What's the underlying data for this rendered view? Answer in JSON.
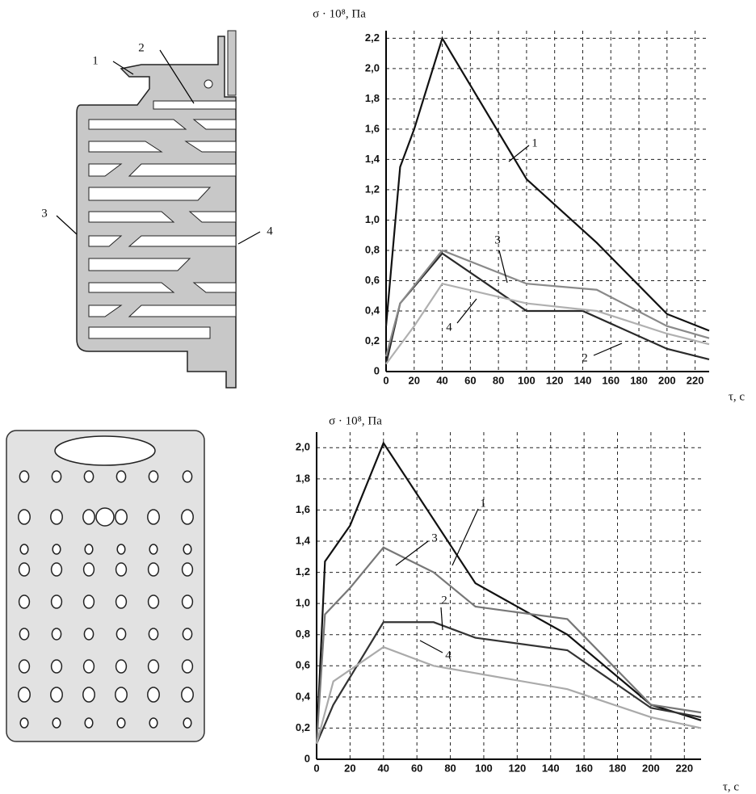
{
  "diagram": {
    "labels": [
      "1",
      "2",
      "3",
      "4"
    ]
  },
  "chart_data": [
    {
      "type": "line",
      "y_label": "σ · 10⁸, Па",
      "x_label": "τ, с",
      "xlim": [
        0,
        230
      ],
      "ylim": [
        0,
        2.25
      ],
      "xticks": [
        0,
        20,
        40,
        60,
        80,
        100,
        120,
        140,
        160,
        180,
        200,
        220
      ],
      "yticks": [
        0,
        {
          "value": 0.2,
          "label": "0,2"
        },
        {
          "value": 0.4,
          "label": "0,4"
        },
        {
          "value": 0.6,
          "label": "0,6"
        },
        {
          "value": 0.8,
          "label": "0,8"
        },
        {
          "value": 1.0,
          "label": "1,0"
        },
        {
          "value": 1.2,
          "label": "1,2"
        },
        {
          "value": 1.4,
          "label": "1,4"
        },
        {
          "value": 1.6,
          "label": "1,6"
        },
        {
          "value": 1.8,
          "label": "1,8"
        },
        {
          "value": 2.0,
          "label": "2,0"
        },
        {
          "value": 2.2,
          "label": "2,2"
        }
      ],
      "grid": true,
      "series": [
        {
          "name": "1",
          "color": "#111111",
          "x": [
            0,
            10,
            20,
            40,
            100,
            150,
            200,
            230
          ],
          "values": [
            0.3,
            1.35,
            1.6,
            2.2,
            1.27,
            0.85,
            0.38,
            0.27
          ]
        },
        {
          "name": "2",
          "color": "#2a2a2a",
          "x": [
            0,
            10,
            40,
            100,
            140,
            200,
            230
          ],
          "values": [
            0.05,
            0.45,
            0.78,
            0.4,
            0.4,
            0.15,
            0.08
          ]
        },
        {
          "name": "3",
          "color": "#8a8a8a",
          "x": [
            0,
            10,
            40,
            100,
            150,
            200,
            230
          ],
          "values": [
            0.1,
            0.45,
            0.8,
            0.58,
            0.54,
            0.3,
            0.22
          ]
        },
        {
          "name": "4",
          "color": "#b0b0b0",
          "x": [
            0,
            20,
            40,
            100,
            150,
            200,
            230
          ],
          "values": [
            0.05,
            0.3,
            0.58,
            0.45,
            0.4,
            0.25,
            0.18
          ]
        }
      ]
    },
    {
      "type": "line",
      "y_label": "σ · 10⁸, Па",
      "x_label": "τ, с",
      "xlim": [
        0,
        230
      ],
      "ylim": [
        0,
        2.1
      ],
      "xticks": [
        0,
        20,
        40,
        60,
        80,
        100,
        120,
        140,
        160,
        180,
        200,
        220
      ],
      "yticks": [
        0,
        {
          "value": 0.2,
          "label": "0,2"
        },
        {
          "value": 0.4,
          "label": "0,4"
        },
        {
          "value": 0.6,
          "label": "0,6"
        },
        {
          "value": 0.8,
          "label": "0,8"
        },
        {
          "value": 1.0,
          "label": "1,0"
        },
        {
          "value": 1.2,
          "label": "1,2"
        },
        {
          "value": 1.4,
          "label": "1,4"
        },
        {
          "value": 1.6,
          "label": "1,6"
        },
        {
          "value": 1.8,
          "label": "1,8"
        },
        {
          "value": 2.0,
          "label": "2,0"
        }
      ],
      "grid": true,
      "series": [
        {
          "name": "1",
          "color": "#111111",
          "x": [
            0,
            5,
            20,
            40,
            95,
            150,
            200,
            230
          ],
          "values": [
            0.1,
            1.27,
            1.5,
            2.03,
            1.13,
            0.8,
            0.35,
            0.25
          ]
        },
        {
          "name": "2",
          "color": "#333333",
          "x": [
            0,
            10,
            40,
            70,
            95,
            150,
            200,
            230
          ],
          "values": [
            0.1,
            0.35,
            0.88,
            0.88,
            0.78,
            0.7,
            0.33,
            0.27
          ]
        },
        {
          "name": "3",
          "color": "#777777",
          "x": [
            0,
            5,
            20,
            40,
            70,
            95,
            150,
            200,
            230
          ],
          "values": [
            0.1,
            0.93,
            1.1,
            1.36,
            1.2,
            0.98,
            0.9,
            0.35,
            0.3
          ]
        },
        {
          "name": "4",
          "color": "#aaaaaa",
          "x": [
            0,
            10,
            40,
            70,
            150,
            200,
            230
          ],
          "values": [
            0.1,
            0.5,
            0.72,
            0.6,
            0.45,
            0.27,
            0.2
          ]
        }
      ]
    }
  ]
}
